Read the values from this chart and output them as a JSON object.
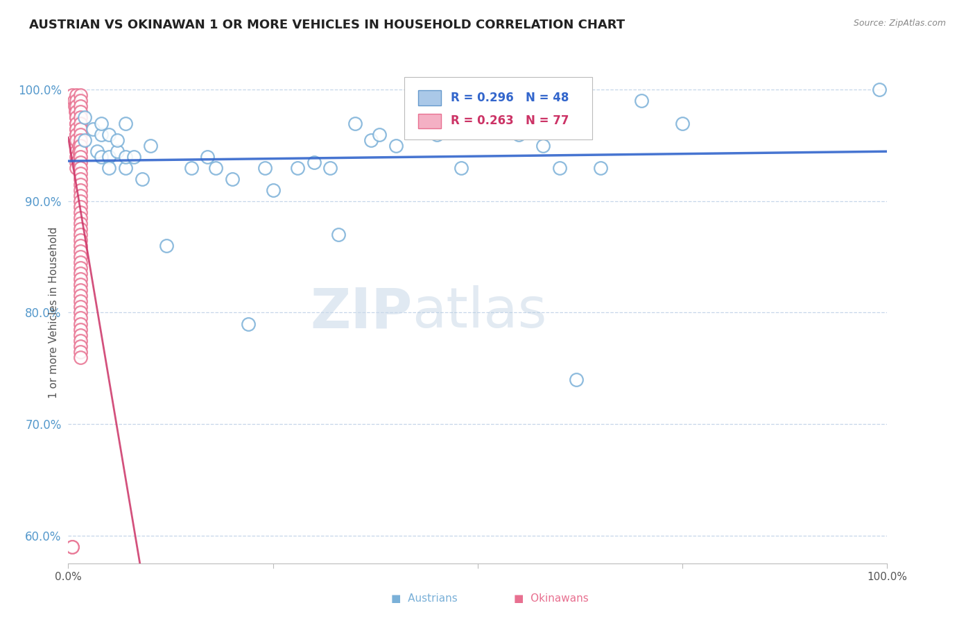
{
  "title": "AUSTRIAN VS OKINAWAN 1 OR MORE VEHICLES IN HOUSEHOLD CORRELATION CHART",
  "source_text": "Source: ZipAtlas.com",
  "ylabel": "1 or more Vehicles in Household",
  "xlim": [
    0.0,
    1.0
  ],
  "ylim": [
    0.575,
    1.025
  ],
  "y_ticks": [
    0.6,
    0.7,
    0.8,
    0.9,
    1.0
  ],
  "y_tick_labels": [
    "60.0%",
    "70.0%",
    "80.0%",
    "90.0%",
    "100.0%"
  ],
  "x_tick_labels": [
    "0.0%",
    "100.0%"
  ],
  "legend_r_austrians": "R = 0.296",
  "legend_n_austrians": "N = 48",
  "legend_r_okinawans": "R = 0.263",
  "legend_n_okinawans": "N = 77",
  "austrian_edge": "#7ab0d8",
  "okinawan_edge": "#e87090",
  "trend_color_austrian": "#3366cc",
  "trend_color_okinawan": "#cc3366",
  "watermark_color": "#ccd8e8",
  "austrians_x": [
    0.02,
    0.02,
    0.03,
    0.035,
    0.04,
    0.04,
    0.04,
    0.05,
    0.05,
    0.05,
    0.06,
    0.06,
    0.07,
    0.07,
    0.07,
    0.08,
    0.09,
    0.1,
    0.12,
    0.15,
    0.17,
    0.18,
    0.2,
    0.22,
    0.24,
    0.25,
    0.28,
    0.3,
    0.32,
    0.33,
    0.35,
    0.37,
    0.38,
    0.4,
    0.42,
    0.43,
    0.45,
    0.47,
    0.48,
    0.5,
    0.55,
    0.58,
    0.6,
    0.62,
    0.65,
    0.7,
    0.75,
    0.99
  ],
  "austrians_y": [
    0.975,
    0.955,
    0.965,
    0.945,
    0.96,
    0.94,
    0.97,
    0.94,
    0.96,
    0.93,
    0.945,
    0.955,
    0.93,
    0.94,
    0.97,
    0.94,
    0.92,
    0.95,
    0.86,
    0.93,
    0.94,
    0.93,
    0.92,
    0.79,
    0.93,
    0.91,
    0.93,
    0.935,
    0.93,
    0.87,
    0.97,
    0.955,
    0.96,
    0.95,
    0.97,
    0.97,
    0.96,
    0.97,
    0.93,
    0.975,
    0.96,
    0.95,
    0.93,
    0.74,
    0.93,
    0.99,
    0.97,
    1.0
  ],
  "okinawans_x": [
    0.005,
    0.007,
    0.008,
    0.009,
    0.01,
    0.01,
    0.01,
    0.01,
    0.01,
    0.01,
    0.01,
    0.01,
    0.01,
    0.01,
    0.01,
    0.01,
    0.01,
    0.01,
    0.01,
    0.01,
    0.01,
    0.01,
    0.01,
    0.013,
    0.013,
    0.014,
    0.014,
    0.015,
    0.015,
    0.015,
    0.015,
    0.015,
    0.015,
    0.015,
    0.015,
    0.015,
    0.015,
    0.015,
    0.015,
    0.015,
    0.015,
    0.015,
    0.015,
    0.015,
    0.015,
    0.015,
    0.015,
    0.015,
    0.015,
    0.015,
    0.015,
    0.015,
    0.015,
    0.015,
    0.015,
    0.015,
    0.015,
    0.015,
    0.015,
    0.015,
    0.015,
    0.015,
    0.015,
    0.015,
    0.015,
    0.015,
    0.015,
    0.015,
    0.015,
    0.015,
    0.015,
    0.015,
    0.015,
    0.015,
    0.015,
    0.005,
    0.005
  ],
  "okinawans_y": [
    0.995,
    0.99,
    0.985,
    0.98,
    0.975,
    0.97,
    0.965,
    0.96,
    0.955,
    0.95,
    0.945,
    0.94,
    0.935,
    0.93,
    0.995,
    0.99,
    0.985,
    0.98,
    0.975,
    0.97,
    0.965,
    0.96,
    0.955,
    0.95,
    0.945,
    0.94,
    0.935,
    0.995,
    0.99,
    0.985,
    0.98,
    0.975,
    0.97,
    0.965,
    0.96,
    0.955,
    0.95,
    0.945,
    0.94,
    0.935,
    0.93,
    0.925,
    0.92,
    0.915,
    0.91,
    0.905,
    0.9,
    0.895,
    0.89,
    0.885,
    0.88,
    0.875,
    0.87,
    0.865,
    0.86,
    0.855,
    0.85,
    0.845,
    0.84,
    0.835,
    0.83,
    0.825,
    0.82,
    0.815,
    0.81,
    0.805,
    0.8,
    0.795,
    0.79,
    0.785,
    0.78,
    0.775,
    0.77,
    0.765,
    0.76,
    0.59,
    0.59
  ]
}
